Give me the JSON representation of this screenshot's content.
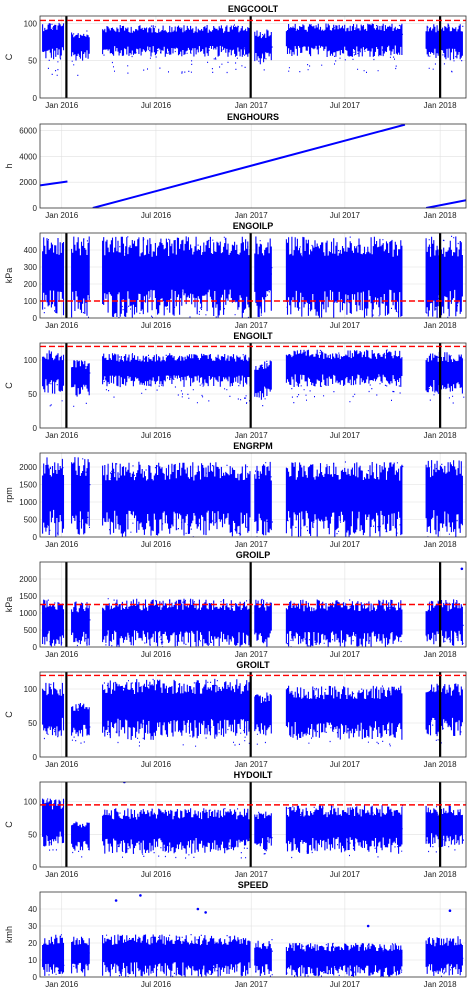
{
  "figure": {
    "layout": "9 stacked time-series subplots",
    "grid": true
  },
  "x_ticks": [
    "Jan 2016",
    "Jul 2016",
    "Jan 2017",
    "Jul 2017",
    "Jan 2018"
  ],
  "x_tick_dates": [
    "2016-01-01",
    "2016-07-01",
    "2017-01-01",
    "2017-07-01",
    "2018-01-01"
  ],
  "x_range": [
    "2015-11-20",
    "2018-02-20"
  ],
  "colors": {
    "data": "#0000ff",
    "threshold": "#ff0000",
    "gap": "#000000"
  },
  "chart_data": [
    {
      "type": "scatter",
      "title": "ENGCOOLT",
      "ylabel": "C",
      "ylim": [
        0,
        110
      ],
      "yticks": [
        0,
        50,
        100
      ],
      "threshold": 104,
      "bands": [
        {
          "from": "2015-11-25",
          "to": "2016-01-05",
          "low": 50,
          "high": 103
        },
        {
          "from": "2016-01-20",
          "to": "2016-02-25",
          "low": 50,
          "high": 90
        },
        {
          "from": "2016-03-20",
          "to": "2016-12-30",
          "low": 55,
          "high": 98
        },
        {
          "from": "2017-01-08",
          "to": "2017-02-10",
          "low": 45,
          "high": 92
        },
        {
          "from": "2017-03-10",
          "to": "2017-10-20",
          "low": 55,
          "high": 100
        },
        {
          "from": "2017-12-05",
          "to": "2018-02-15",
          "low": 50,
          "high": 100
        }
      ],
      "gap_markers": [
        "2016-01-10",
        "2016-12-31",
        "2018-01-01"
      ]
    },
    {
      "type": "scatter",
      "title": "ENGHOURS",
      "ylabel": "h",
      "ylim": [
        0,
        6500
      ],
      "yticks": [
        0,
        2000,
        4000,
        6000
      ],
      "segments": [
        {
          "from": "2015-11-20",
          "to": "2016-01-12",
          "y0": 1750,
          "y1": 2050
        },
        {
          "from": "2016-03-01",
          "to": "2017-10-25",
          "y0": 0,
          "y1": 6450
        },
        {
          "from": "2017-12-05",
          "to": "2018-02-20",
          "y0": 0,
          "y1": 600
        }
      ]
    },
    {
      "type": "scatter",
      "title": "ENGOILP",
      "ylabel": "kPa",
      "ylim": [
        0,
        500
      ],
      "yticks": [
        0,
        100,
        200,
        300,
        400
      ],
      "threshold": 100,
      "bands": [
        {
          "from": "2015-11-25",
          "to": "2016-01-05",
          "low": 0,
          "high": 480
        },
        {
          "from": "2016-01-20",
          "to": "2016-02-25",
          "low": 0,
          "high": 480
        },
        {
          "from": "2016-03-20",
          "to": "2016-12-30",
          "low": 0,
          "high": 480
        },
        {
          "from": "2017-01-08",
          "to": "2017-02-10",
          "low": 0,
          "high": 480
        },
        {
          "from": "2017-03-10",
          "to": "2017-10-20",
          "low": 0,
          "high": 480
        },
        {
          "from": "2017-12-05",
          "to": "2018-02-15",
          "low": 0,
          "high": 480
        }
      ],
      "gap_markers": [
        "2016-01-10",
        "2016-12-31",
        "2018-01-01"
      ]
    },
    {
      "type": "scatter",
      "title": "ENGOILT",
      "ylabel": "C",
      "ylim": [
        0,
        125
      ],
      "yticks": [
        0,
        50,
        100
      ],
      "threshold": 120,
      "bands": [
        {
          "from": "2015-11-25",
          "to": "2016-01-05",
          "low": 50,
          "high": 115
        },
        {
          "from": "2016-01-20",
          "to": "2016-02-25",
          "low": 45,
          "high": 100
        },
        {
          "from": "2016-03-20",
          "to": "2016-12-30",
          "low": 60,
          "high": 110
        },
        {
          "from": "2017-01-08",
          "to": "2017-02-10",
          "low": 40,
          "high": 100
        },
        {
          "from": "2017-03-10",
          "to": "2017-10-20",
          "low": 60,
          "high": 115
        },
        {
          "from": "2017-12-05",
          "to": "2018-02-15",
          "low": 50,
          "high": 112
        }
      ],
      "gap_markers": [
        "2016-01-10",
        "2016-12-31",
        "2018-01-01"
      ]
    },
    {
      "type": "scatter",
      "title": "ENGRPM",
      "ylabel": "rpm",
      "ylim": [
        0,
        2400
      ],
      "yticks": [
        0,
        500,
        1000,
        1500,
        2000
      ],
      "bands": [
        {
          "from": "2015-11-25",
          "to": "2016-01-05",
          "low": 0,
          "high": 2300
        },
        {
          "from": "2016-01-20",
          "to": "2016-02-25",
          "low": 0,
          "high": 2300
        },
        {
          "from": "2016-03-20",
          "to": "2016-12-30",
          "low": 0,
          "high": 2150
        },
        {
          "from": "2017-01-08",
          "to": "2017-02-10",
          "low": 0,
          "high": 2150
        },
        {
          "from": "2017-03-10",
          "to": "2017-10-20",
          "low": 0,
          "high": 2150
        },
        {
          "from": "2017-12-05",
          "to": "2018-02-15",
          "low": 0,
          "high": 2200
        }
      ]
    },
    {
      "type": "scatter",
      "title": "GROILP",
      "ylabel": "kPa",
      "ylim": [
        0,
        2500
      ],
      "yticks": [
        0,
        500,
        1000,
        1500,
        2000
      ],
      "threshold": 1250,
      "bands": [
        {
          "from": "2015-11-25",
          "to": "2016-01-05",
          "low": 0,
          "high": 1400
        },
        {
          "from": "2016-01-20",
          "to": "2016-02-25",
          "low": 0,
          "high": 1350
        },
        {
          "from": "2016-03-20",
          "to": "2016-12-30",
          "low": 0,
          "high": 1420
        },
        {
          "from": "2017-01-08",
          "to": "2017-02-10",
          "low": 0,
          "high": 1400
        },
        {
          "from": "2017-03-10",
          "to": "2017-10-20",
          "low": 0,
          "high": 1400
        },
        {
          "from": "2017-12-05",
          "to": "2018-02-15",
          "low": 0,
          "high": 1400
        }
      ],
      "spikes": [
        {
          "date": "2018-02-12",
          "value": 2300
        }
      ],
      "gap_markers": [
        "2016-01-10",
        "2016-12-31",
        "2018-01-01"
      ]
    },
    {
      "type": "scatter",
      "title": "GROILT",
      "ylabel": "C",
      "ylim": [
        0,
        125
      ],
      "yticks": [
        0,
        50,
        100
      ],
      "threshold": 120,
      "bands": [
        {
          "from": "2015-11-25",
          "to": "2016-01-05",
          "low": 30,
          "high": 110
        },
        {
          "from": "2016-01-20",
          "to": "2016-02-25",
          "low": 30,
          "high": 80
        },
        {
          "from": "2016-03-20",
          "to": "2016-12-30",
          "low": 25,
          "high": 115
        },
        {
          "from": "2017-01-08",
          "to": "2017-02-10",
          "low": 30,
          "high": 95
        },
        {
          "from": "2017-03-10",
          "to": "2017-10-20",
          "low": 25,
          "high": 105
        },
        {
          "from": "2017-12-05",
          "to": "2018-02-15",
          "low": 30,
          "high": 110
        }
      ],
      "gap_markers": [
        "2016-01-10",
        "2016-12-31",
        "2018-01-01"
      ]
    },
    {
      "type": "scatter",
      "title": "HYDOILT",
      "ylabel": "C",
      "ylim": [
        0,
        130
      ],
      "yticks": [
        0,
        50,
        100
      ],
      "threshold": 95,
      "bands": [
        {
          "from": "2015-11-25",
          "to": "2016-01-05",
          "low": 30,
          "high": 105
        },
        {
          "from": "2016-01-20",
          "to": "2016-02-25",
          "low": 25,
          "high": 70
        },
        {
          "from": "2016-03-20",
          "to": "2016-12-30",
          "low": 20,
          "high": 90
        },
        {
          "from": "2017-01-08",
          "to": "2017-02-10",
          "low": 25,
          "high": 85
        },
        {
          "from": "2017-03-10",
          "to": "2017-10-20",
          "low": 20,
          "high": 95
        },
        {
          "from": "2017-12-05",
          "to": "2018-02-15",
          "low": 30,
          "high": 95
        }
      ],
      "spikes": [
        {
          "date": "2016-05-01",
          "value": 130
        }
      ],
      "gap_markers": [
        "2016-01-10",
        "2016-12-31",
        "2018-01-01"
      ]
    },
    {
      "type": "scatter",
      "title": "SPEED",
      "ylabel": "kmh",
      "ylim": [
        0,
        50
      ],
      "yticks": [
        0,
        10,
        20,
        30,
        40
      ],
      "bands": [
        {
          "from": "2015-11-25",
          "to": "2016-01-05",
          "low": 0,
          "high": 25
        },
        {
          "from": "2016-01-20",
          "to": "2016-02-25",
          "low": 0,
          "high": 24
        },
        {
          "from": "2016-03-20",
          "to": "2016-12-30",
          "low": 0,
          "high": 25
        },
        {
          "from": "2017-01-08",
          "to": "2017-02-10",
          "low": 0,
          "high": 22
        },
        {
          "from": "2017-03-10",
          "to": "2017-10-20",
          "low": 0,
          "high": 20
        },
        {
          "from": "2017-12-05",
          "to": "2018-02-15",
          "low": 0,
          "high": 24
        }
      ],
      "spikes": [
        {
          "date": "2016-04-15",
          "value": 45
        },
        {
          "date": "2016-06-01",
          "value": 48
        },
        {
          "date": "2016-09-20",
          "value": 40
        },
        {
          "date": "2016-10-05",
          "value": 38
        },
        {
          "date": "2017-08-15",
          "value": 30
        },
        {
          "date": "2018-01-20",
          "value": 39
        }
      ]
    }
  ]
}
